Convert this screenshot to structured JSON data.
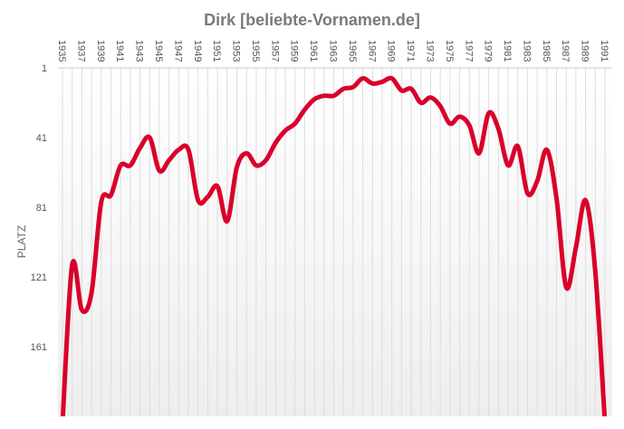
{
  "chart_data": {
    "type": "line",
    "title": "Dirk [beliebte-Vornamen.de]",
    "xlabel": "",
    "ylabel": "PLATZ",
    "x": [
      1935,
      1936,
      1937,
      1938,
      1939,
      1940,
      1941,
      1942,
      1943,
      1944,
      1945,
      1946,
      1947,
      1948,
      1949,
      1950,
      1951,
      1952,
      1953,
      1954,
      1955,
      1956,
      1957,
      1958,
      1959,
      1960,
      1961,
      1962,
      1963,
      1964,
      1965,
      1966,
      1967,
      1968,
      1969,
      1970,
      1971,
      1972,
      1973,
      1974,
      1975,
      1976,
      1977,
      1978,
      1979,
      1980,
      1981,
      1982,
      1983,
      1984,
      1985,
      1986,
      1987,
      1988,
      1989,
      1990,
      1991
    ],
    "values": [
      205,
      114,
      140,
      130,
      78,
      74,
      57,
      57,
      47,
      41,
      60,
      54,
      48,
      48,
      77,
      75,
      69,
      89,
      58,
      50,
      57,
      54,
      44,
      37,
      33,
      25,
      19,
      17,
      17,
      13,
      12,
      7,
      10,
      9,
      7,
      14,
      13,
      21,
      18,
      23,
      33,
      29,
      34,
      50,
      27,
      36,
      57,
      46,
      73,
      66,
      48,
      76,
      127,
      104,
      77,
      118,
      205
    ],
    "x_tick_labels": [
      "1935",
      "1937",
      "1939",
      "1941",
      "1943",
      "1945",
      "1947",
      "1949",
      "1951",
      "1953",
      "1955",
      "1957",
      "1959",
      "1961",
      "1963",
      "1965",
      "1967",
      "1969",
      "1971",
      "1973",
      "1975",
      "1977",
      "1979",
      "1981",
      "1983",
      "1985",
      "1987",
      "1989",
      "1991"
    ],
    "y_tick_labels": [
      "1",
      "41",
      "81",
      "121",
      "161"
    ],
    "y_ticks": [
      1,
      41,
      81,
      121,
      161
    ],
    "ylim": [
      1,
      201
    ],
    "y_reversed": true,
    "x_axis_position": "top",
    "grid": "vertical lines per year",
    "legend": "none",
    "colors": {
      "line": "#d9002a",
      "title": "#7a7a7a",
      "grid": "#dddddd"
    }
  }
}
